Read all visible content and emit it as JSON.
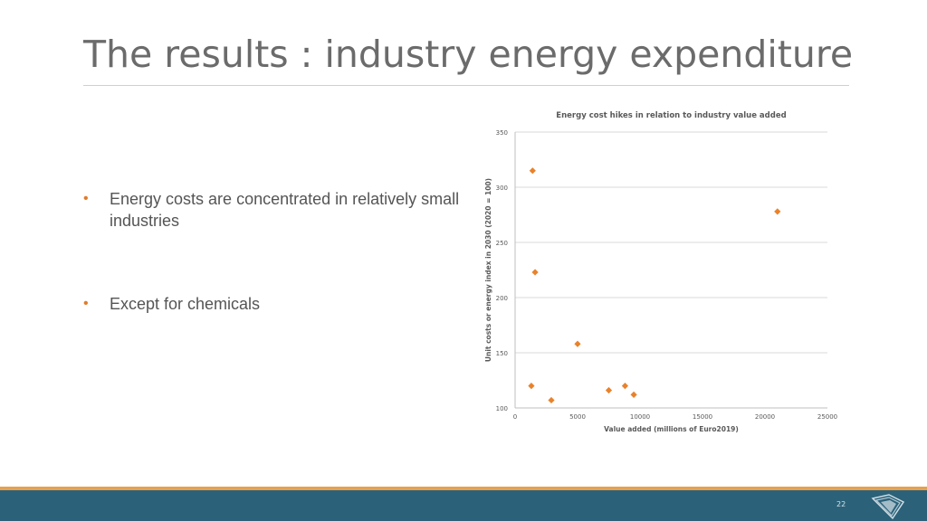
{
  "slide": {
    "title": "The results : industry energy expenditure",
    "page_number": "22",
    "bullets": [
      "Energy costs are concentrated in relatively small industries",
      "Except for chemicals"
    ]
  },
  "colors": {
    "accent": "#e07b2a",
    "marker": "#e9822a",
    "footer_bar": "#2b6279",
    "footer_stripe": "#e8a04c",
    "title_text": "#6b6b6b",
    "gridline": "#d9d9d9"
  },
  "chart_data": {
    "type": "scatter",
    "title": "Energy cost hikes in relation to industry value added",
    "xlabel": "Value added (millions of Euro2019)",
    "ylabel": "Unit costs or energy index in 2030 (2020 = 100)",
    "xlim": [
      0,
      25000
    ],
    "ylim": [
      100,
      350
    ],
    "xticks": [
      0,
      5000,
      10000,
      15000,
      20000,
      25000
    ],
    "yticks": [
      100,
      150,
      200,
      250,
      300,
      350
    ],
    "grid": "horizontal",
    "legend": "none",
    "marker": "diamond",
    "points": [
      {
        "x": 1400,
        "y": 315
      },
      {
        "x": 21000,
        "y": 278
      },
      {
        "x": 1600,
        "y": 223
      },
      {
        "x": 5000,
        "y": 158
      },
      {
        "x": 1300,
        "y": 120
      },
      {
        "x": 8800,
        "y": 120
      },
      {
        "x": 7500,
        "y": 116
      },
      {
        "x": 9500,
        "y": 112
      },
      {
        "x": 2900,
        "y": 107
      }
    ]
  }
}
